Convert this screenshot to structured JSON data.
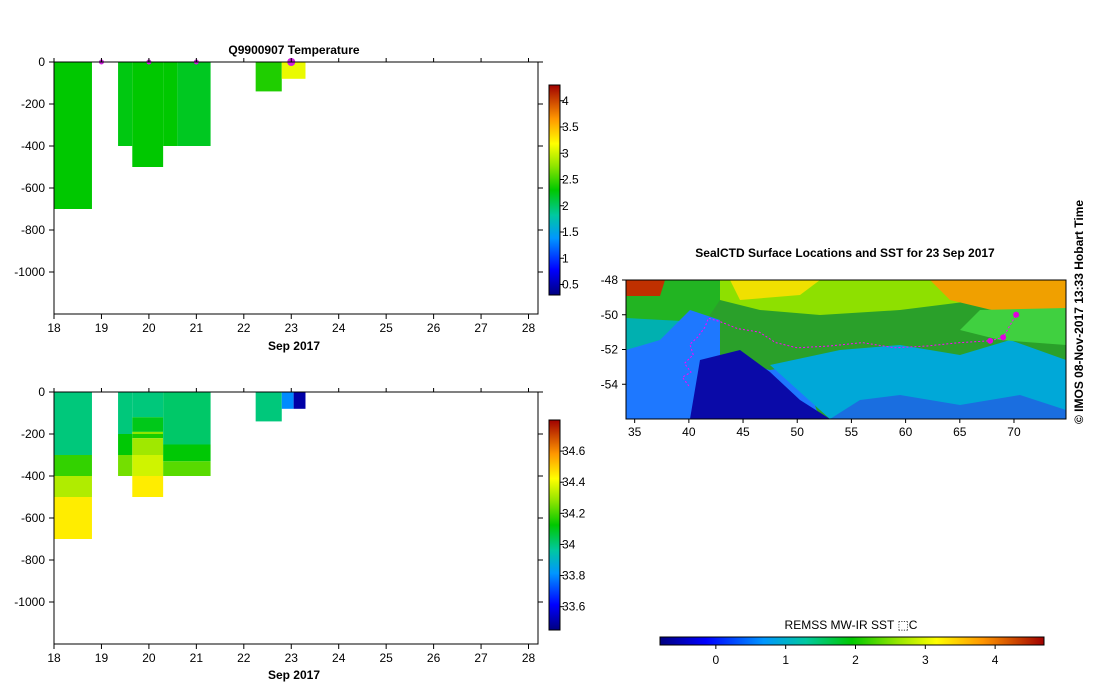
{
  "chart_data": [
    {
      "type": "heatmap",
      "title": "Q9900907  Temperature",
      "xlabel": "Sep 2017",
      "ylabel": "",
      "xlim": [
        18,
        28.2
      ],
      "ylim": [
        -1200,
        0
      ],
      "xticks": [
        "18",
        "19",
        "20",
        "21",
        "22",
        "23",
        "24",
        "25",
        "26",
        "27",
        "28"
      ],
      "yticks": [
        "0",
        "-200",
        "-400",
        "-600",
        "-800",
        "-1000"
      ],
      "profile_markers": [
        19,
        20,
        21,
        23
      ],
      "colorbar": {
        "min": 0.3,
        "max": 4.3,
        "ticks": [
          "0.5",
          "1",
          "1.5",
          "2",
          "2.5",
          "3",
          "3.5",
          "4"
        ]
      },
      "profiles": [
        {
          "x0": 18.0,
          "x1": 18.8,
          "segments": [
            [
              0,
              -700,
              2.3
            ]
          ]
        },
        {
          "x0": 19.35,
          "x1": 19.65,
          "segments": [
            [
              0,
              -400,
              2.25
            ]
          ]
        },
        {
          "x0": 19.65,
          "x1": 20.3,
          "segments": [
            [
              0,
              -500,
              2.3
            ]
          ]
        },
        {
          "x0": 20.3,
          "x1": 20.6,
          "segments": [
            [
              0,
              -400,
              2.3
            ]
          ]
        },
        {
          "x0": 20.6,
          "x1": 21.3,
          "segments": [
            [
              0,
              -400,
              2.2
            ]
          ]
        },
        {
          "x0": 22.25,
          "x1": 22.8,
          "segments": [
            [
              0,
              -140,
              2.4
            ]
          ]
        },
        {
          "x0": 22.8,
          "x1": 23.3,
          "segments": [
            [
              0,
              -80,
              3.1
            ]
          ]
        }
      ]
    },
    {
      "type": "heatmap",
      "title": "",
      "xlabel": "Sep 2017",
      "ylabel": "",
      "xlim": [
        18,
        28.2
      ],
      "ylim": [
        -1200,
        0
      ],
      "xticks": [
        "18",
        "19",
        "20",
        "21",
        "22",
        "23",
        "24",
        "25",
        "26",
        "27",
        "28"
      ],
      "yticks": [
        "0",
        "-200",
        "-400",
        "-600",
        "-800",
        "-1000"
      ],
      "colorbar": {
        "min": 33.45,
        "max": 34.8,
        "ticks": [
          "33.6",
          "33.8",
          "34",
          "34.2",
          "34.4",
          "34.6"
        ]
      },
      "profiles": [
        {
          "x0": 18.0,
          "x1": 18.8,
          "segments": [
            [
              0,
              -300,
              34.0
            ],
            [
              -300,
              -400,
              34.18
            ],
            [
              -400,
              -500,
              34.32
            ],
            [
              -500,
              -700,
              34.45
            ]
          ]
        },
        {
          "x0": 19.35,
          "x1": 19.65,
          "segments": [
            [
              0,
              -200,
              34.0
            ],
            [
              -200,
              -300,
              34.12
            ],
            [
              -300,
              -400,
              34.25
            ]
          ]
        },
        {
          "x0": 19.65,
          "x1": 20.3,
          "segments": [
            [
              0,
              -120,
              34.0
            ],
            [
              -120,
              -190,
              34.1
            ],
            [
              -190,
              -200,
              34.28
            ],
            [
              -200,
              -220,
              34.15
            ],
            [
              -220,
              -300,
              34.3
            ],
            [
              -300,
              -400,
              34.36
            ],
            [
              -400,
              -500,
              34.45
            ]
          ]
        },
        {
          "x0": 20.3,
          "x1": 21.3,
          "segments": [
            [
              0,
              -250,
              34.02
            ],
            [
              -250,
              -330,
              34.12
            ],
            [
              -330,
              -400,
              34.22
            ]
          ]
        },
        {
          "x0": 22.25,
          "x1": 22.8,
          "segments": [
            [
              0,
              -140,
              34.0
            ]
          ]
        },
        {
          "x0": 22.8,
          "x1": 23.05,
          "segments": [
            [
              0,
              -80,
              33.8
            ]
          ]
        },
        {
          "x0": 23.05,
          "x1": 23.3,
          "segments": [
            [
              0,
              -80,
              33.5
            ]
          ]
        }
      ]
    },
    {
      "type": "heatmap",
      "title": "SealCTD Surface Locations and SST for 23 Sep 2017",
      "xlabel": "",
      "ylabel": "",
      "xlim": [
        34.2,
        74.8
      ],
      "ylim": [
        -56,
        -48
      ],
      "xticks": [
        "35",
        "40",
        "45",
        "50",
        "55",
        "60",
        "65",
        "70"
      ],
      "yticks": [
        "-48",
        "-50",
        "-52",
        "-54"
      ],
      "colorbar": {
        "label": "REMSS MW-IR SST ⬚C",
        "min": -0.8,
        "max": 4.7,
        "ticks": [
          "0",
          "1",
          "2",
          "3",
          "4"
        ]
      },
      "seal_track": [
        [
          40.0,
          -54.1
        ],
        [
          39.4,
          -53.6
        ],
        [
          40.2,
          -53.3
        ],
        [
          39.6,
          -52.8
        ],
        [
          40.4,
          -52.3
        ],
        [
          40.1,
          -51.7
        ],
        [
          40.8,
          -51.3
        ],
        [
          41.5,
          -50.7
        ],
        [
          41.8,
          -50.2
        ],
        [
          42.9,
          -50.4
        ],
        [
          44.5,
          -50.8
        ],
        [
          46.5,
          -51.0
        ],
        [
          48.0,
          -51.6
        ],
        [
          50.0,
          -51.9
        ],
        [
          53.0,
          -51.8
        ],
        [
          56.0,
          -51.6
        ],
        [
          59.0,
          -51.9
        ],
        [
          62.0,
          -51.8
        ],
        [
          65.0,
          -51.6
        ],
        [
          67.8,
          -51.5
        ],
        [
          69.0,
          -51.3
        ],
        [
          70.2,
          -50.0
        ]
      ],
      "seal_positions": [
        [
          67.8,
          -51.5
        ],
        [
          69.0,
          -51.3
        ],
        [
          70.2,
          -50.0
        ]
      ]
    }
  ],
  "timestamp": "© IMOS 08-Nov-2017 13:33 Hobart Time"
}
